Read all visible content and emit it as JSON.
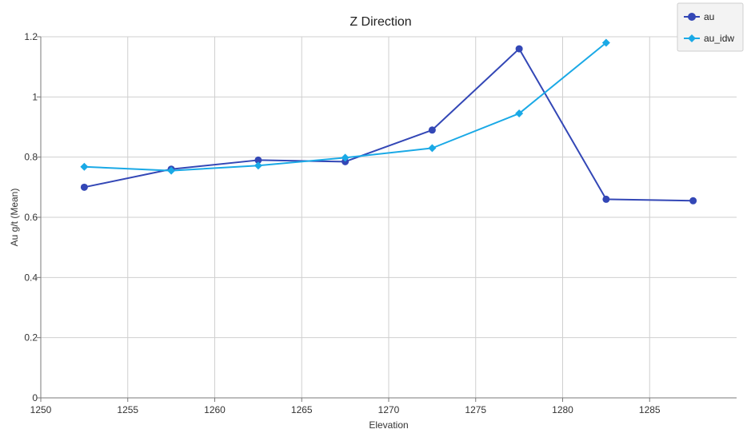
{
  "chart_data": {
    "type": "line",
    "title": "Z Direction",
    "xlabel": "Elevation",
    "ylabel": "Au g/t (Mean)",
    "xlim": [
      1250,
      1290
    ],
    "ylim": [
      0,
      1.2
    ],
    "x_ticks": [
      1250,
      1255,
      1260,
      1265,
      1270,
      1275,
      1280,
      1285
    ],
    "y_ticks": [
      0,
      0.2,
      0.4,
      0.6,
      0.8,
      1,
      1.2
    ],
    "x_tick_labels": [
      "1250",
      "1255",
      "1260",
      "1265",
      "1270",
      "1275",
      "1280",
      "1285"
    ],
    "y_tick_labels": [
      "0",
      "0.2",
      "0.4",
      "0.6",
      "0.8",
      "1",
      "1.2"
    ],
    "grid": true,
    "legend_position": "top-right",
    "series": [
      {
        "name": "au",
        "color": "#3347b6",
        "marker": "circle",
        "x": [
          1252.5,
          1257.5,
          1262.5,
          1267.5,
          1272.5,
          1277.5,
          1282.5,
          1287.5
        ],
        "y": [
          0.7,
          0.76,
          0.79,
          0.785,
          0.89,
          1.16,
          0.66,
          0.655
        ]
      },
      {
        "name": "au_idw",
        "color": "#1aa9e6",
        "marker": "diamond",
        "x": [
          1252.5,
          1257.5,
          1262.5,
          1267.5,
          1272.5,
          1277.5,
          1282.5
        ],
        "y": [
          0.768,
          0.755,
          0.772,
          0.798,
          0.83,
          0.945,
          1.18
        ]
      }
    ]
  }
}
